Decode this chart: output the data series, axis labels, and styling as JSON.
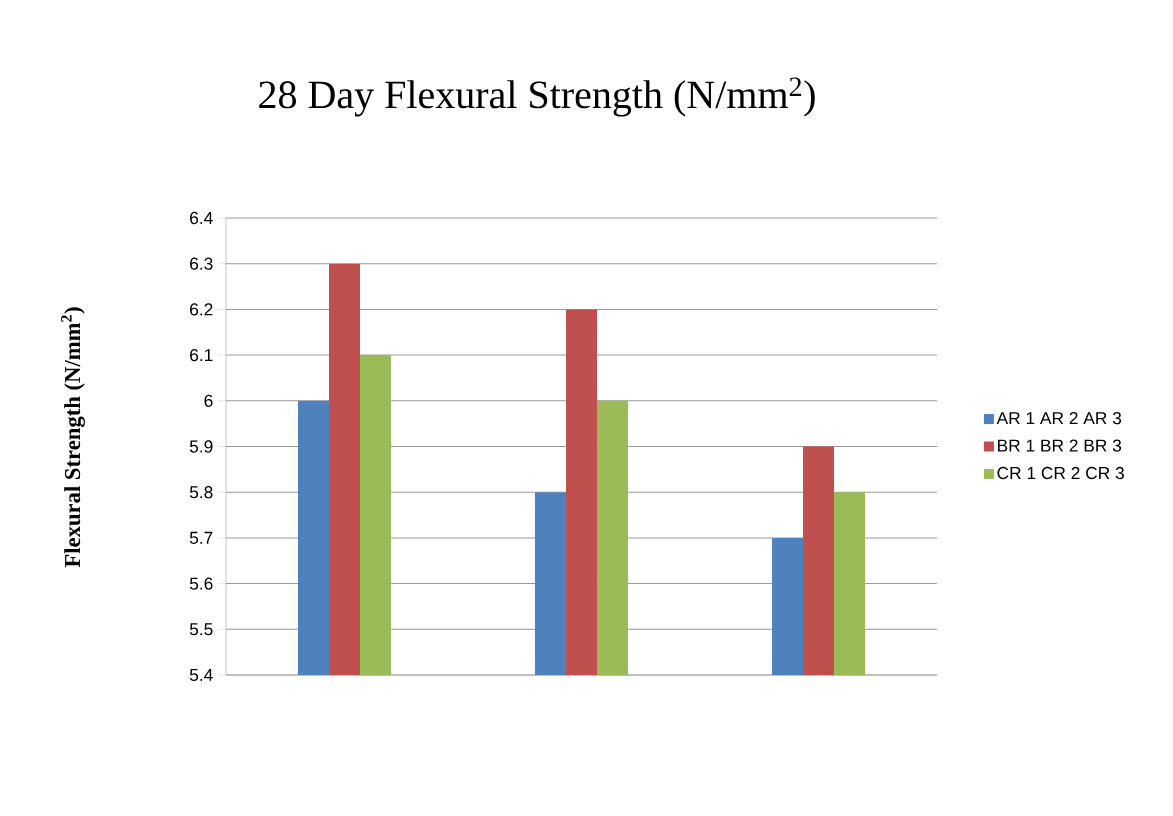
{
  "chart_data": {
    "type": "bar",
    "title": "28 Day Flexural Strength (N/mm$^{2}$)",
    "ylabel": "Flexural Strength (N/mm$^{2}$)",
    "categories": [
      null,
      null,
      null
    ],
    "series": [
      {
        "name": "AR 1 AR 2 AR 3",
        "color": "#4f81bd",
        "values": [
          6.0,
          5.8,
          5.7
        ]
      },
      {
        "name": "BR 1 BR 2 BR 3",
        "color": "#c0504d",
        "values": [
          6.3,
          6.2,
          5.9
        ]
      },
      {
        "name": "CR 1 CR 2 CR 3",
        "color": "#9bbb59",
        "values": [
          6.1,
          6.0,
          5.8
        ]
      }
    ],
    "ylim": [
      5.4,
      6.4
    ],
    "yticks": [
      5.4,
      5.5,
      5.6,
      5.7,
      5.8,
      5.9,
      6,
      6.1,
      6.2,
      6.3,
      6.4
    ],
    "grid": "y",
    "legend": "right"
  }
}
